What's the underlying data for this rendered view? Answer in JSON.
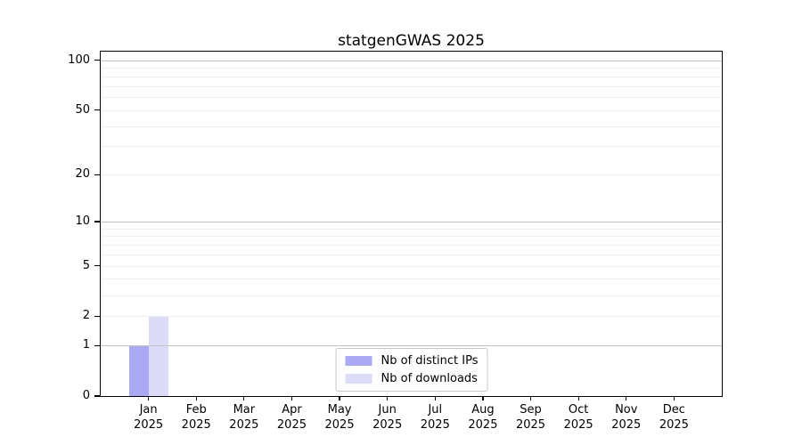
{
  "chart_data": {
    "type": "bar",
    "title": "statgenGWAS 2025",
    "categories": [
      "Jan",
      "Feb",
      "Mar",
      "Apr",
      "May",
      "Jun",
      "Jul",
      "Aug",
      "Sep",
      "Oct",
      "Nov",
      "Dec"
    ],
    "category_year": "2025",
    "series": [
      {
        "name": "Nb of distinct IPs",
        "color": "#a9a9f4",
        "values": [
          1,
          0,
          0,
          0,
          0,
          0,
          0,
          0,
          0,
          0,
          0,
          0
        ]
      },
      {
        "name": "Nb of downloads",
        "color": "#dcdcf8",
        "values": [
          2,
          0,
          0,
          0,
          0,
          0,
          0,
          0,
          0,
          0,
          0,
          0
        ]
      }
    ],
    "yscale": "log1p",
    "ylim": [
      0,
      113
    ],
    "yticks": [
      0,
      1,
      2,
      5,
      10,
      20,
      50,
      100
    ],
    "minor_gridlines": [
      2,
      3,
      4,
      5,
      6,
      7,
      8,
      9,
      20,
      30,
      40,
      50,
      60,
      70,
      80,
      90
    ],
    "major_gridlines": [
      1,
      10,
      100
    ],
    "grid_color_minor": "#eeeeee",
    "grid_color_major": "#c2c2c2",
    "legend_position": "lower center",
    "grid": "horizontal"
  }
}
